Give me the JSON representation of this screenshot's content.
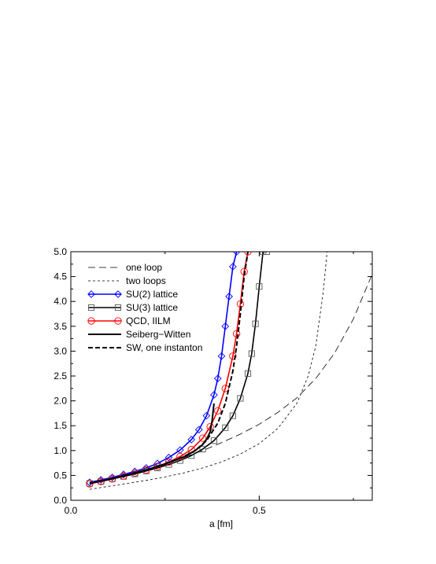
{
  "chart_data": {
    "type": "line",
    "title": "",
    "xlabel": "a [fm]",
    "ylabel": "",
    "xlim": [
      0.0,
      0.8
    ],
    "ylim": [
      0.0,
      5.0
    ],
    "x_ticks": [
      "0.0",
      "0.5"
    ],
    "x_tick_values": [
      0.0,
      0.5
    ],
    "y_ticks": [
      "0.0",
      "0.5",
      "1.0",
      "1.5",
      "2.0",
      "2.5",
      "3.0",
      "3.5",
      "4.0",
      "4.5",
      "5.0"
    ],
    "y_tick_values": [
      0.0,
      0.5,
      1.0,
      1.5,
      2.0,
      2.5,
      3.0,
      3.5,
      4.0,
      4.5,
      5.0
    ],
    "grid": false,
    "legend_position": "top-left",
    "series": [
      {
        "name": "one loop",
        "color": "#000000",
        "line": "long-dash",
        "marker": "none",
        "x": [
          0.05,
          0.1,
          0.15,
          0.2,
          0.25,
          0.3,
          0.35,
          0.4,
          0.45,
          0.5,
          0.55,
          0.6,
          0.65,
          0.7,
          0.75,
          0.8
        ],
        "y": [
          0.33,
          0.42,
          0.52,
          0.62,
          0.74,
          0.86,
          1.0,
          1.16,
          1.33,
          1.53,
          1.77,
          2.06,
          2.45,
          2.96,
          3.65,
          4.55
        ]
      },
      {
        "name": "two loops",
        "color": "#000000",
        "line": "short-dash",
        "marker": "none",
        "x": [
          0.05,
          0.1,
          0.15,
          0.2,
          0.25,
          0.3,
          0.35,
          0.4,
          0.45,
          0.5,
          0.55,
          0.6,
          0.63,
          0.65,
          0.67,
          0.68
        ],
        "y": [
          0.22,
          0.28,
          0.34,
          0.4,
          0.47,
          0.55,
          0.65,
          0.77,
          0.93,
          1.14,
          1.45,
          1.95,
          2.5,
          3.1,
          4.2,
          5.0
        ]
      },
      {
        "name": "SU(2)  lattice",
        "color": "#0000ff",
        "line": "solid",
        "marker": "diamond",
        "x": [
          0.05,
          0.08,
          0.11,
          0.14,
          0.17,
          0.2,
          0.23,
          0.26,
          0.29,
          0.32,
          0.34,
          0.36,
          0.38,
          0.39,
          0.4,
          0.41,
          0.42,
          0.43,
          0.44
        ],
        "y": [
          0.36,
          0.41,
          0.46,
          0.52,
          0.58,
          0.65,
          0.74,
          0.86,
          1.01,
          1.22,
          1.42,
          1.7,
          2.12,
          2.45,
          2.9,
          3.5,
          4.1,
          4.7,
          5.0
        ]
      },
      {
        "name": "SU(3) lattice",
        "color": "#000000",
        "line": "solid",
        "marker": "square",
        "x": [
          0.05,
          0.08,
          0.11,
          0.14,
          0.17,
          0.2,
          0.23,
          0.26,
          0.29,
          0.32,
          0.35,
          0.38,
          0.41,
          0.43,
          0.45,
          0.47,
          0.48,
          0.49,
          0.5,
          0.51,
          0.52
        ],
        "y": [
          0.34,
          0.38,
          0.43,
          0.48,
          0.53,
          0.59,
          0.65,
          0.72,
          0.8,
          0.9,
          1.03,
          1.2,
          1.46,
          1.7,
          2.05,
          2.55,
          2.95,
          3.55,
          4.3,
          5.0,
          5.0
        ]
      },
      {
        "name": "QCD, IILM",
        "color": "#ff0000",
        "line": "solid",
        "marker": "circle",
        "x": [
          0.05,
          0.08,
          0.11,
          0.14,
          0.17,
          0.2,
          0.23,
          0.26,
          0.29,
          0.32,
          0.35,
          0.37,
          0.39,
          0.41,
          0.43,
          0.44,
          0.45,
          0.46,
          0.47
        ],
        "y": [
          0.33,
          0.38,
          0.43,
          0.49,
          0.55,
          0.61,
          0.68,
          0.77,
          0.88,
          1.02,
          1.25,
          1.48,
          1.8,
          2.25,
          2.9,
          3.35,
          3.95,
          4.6,
          5.0
        ]
      },
      {
        "name": "Seiberg−Witten",
        "color": "#000000",
        "line": "solid-thick",
        "marker": "none",
        "x": [
          0.05,
          0.1,
          0.15,
          0.2,
          0.25,
          0.3,
          0.33,
          0.35,
          0.36,
          0.37,
          0.375,
          0.38
        ],
        "y": [
          0.34,
          0.42,
          0.51,
          0.61,
          0.73,
          0.87,
          1.0,
          1.12,
          1.22,
          1.38,
          1.6,
          1.95
        ]
      },
      {
        "name": "SW, one instanton",
        "color": "#000000",
        "line": "dash-thick",
        "marker": "none",
        "x": [
          0.05,
          0.1,
          0.15,
          0.2,
          0.25,
          0.3,
          0.33,
          0.36,
          0.39,
          0.41,
          0.43,
          0.44,
          0.45,
          0.46,
          0.47
        ],
        "y": [
          0.34,
          0.42,
          0.51,
          0.61,
          0.73,
          0.88,
          1.0,
          1.2,
          1.55,
          1.95,
          2.6,
          3.1,
          3.75,
          4.5,
          5.0
        ]
      }
    ]
  }
}
